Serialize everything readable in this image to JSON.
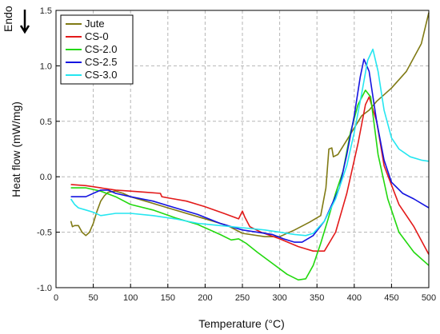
{
  "chart_data": {
    "type": "line",
    "title": "",
    "xlabel": "Temperature (°C)",
    "ylabel": "Heat flow (mW/mg)",
    "annotation": "Endo",
    "xlim": [
      0,
      500
    ],
    "ylim": [
      -1.0,
      1.5
    ],
    "xticks": [
      0,
      50,
      100,
      150,
      200,
      250,
      300,
      350,
      400,
      450,
      500
    ],
    "yticks": [
      -1.0,
      -0.5,
      0.0,
      0.5,
      1.0,
      1.5
    ],
    "grid": true,
    "legend_position": "top-left",
    "series": [
      {
        "name": "Jute",
        "color": "#807a14",
        "points": [
          [
            20,
            -0.4
          ],
          [
            22,
            -0.45
          ],
          [
            25,
            -0.44
          ],
          [
            30,
            -0.44
          ],
          [
            35,
            -0.5
          ],
          [
            40,
            -0.53
          ],
          [
            45,
            -0.5
          ],
          [
            50,
            -0.42
          ],
          [
            55,
            -0.31
          ],
          [
            60,
            -0.22
          ],
          [
            65,
            -0.17
          ],
          [
            70,
            -0.14
          ],
          [
            80,
            -0.13
          ],
          [
            90,
            -0.15
          ],
          [
            100,
            -0.18
          ],
          [
            120,
            -0.22
          ],
          [
            150,
            -0.28
          ],
          [
            200,
            -0.38
          ],
          [
            230,
            -0.44
          ],
          [
            250,
            -0.51
          ],
          [
            280,
            -0.54
          ],
          [
            300,
            -0.54
          ],
          [
            320,
            -0.48
          ],
          [
            340,
            -0.41
          ],
          [
            355,
            -0.35
          ],
          [
            362,
            -0.1
          ],
          [
            366,
            0.25
          ],
          [
            370,
            0.26
          ],
          [
            372,
            0.18
          ],
          [
            378,
            0.2
          ],
          [
            390,
            0.33
          ],
          [
            400,
            0.44
          ],
          [
            410,
            0.55
          ],
          [
            420,
            0.6
          ],
          [
            430,
            0.68
          ],
          [
            450,
            0.8
          ],
          [
            470,
            0.95
          ],
          [
            490,
            1.2
          ],
          [
            500,
            1.48
          ]
        ]
      },
      {
        "name": "CS-0",
        "color": "#e31a1a",
        "points": [
          [
            20,
            -0.07
          ],
          [
            40,
            -0.08
          ],
          [
            60,
            -0.1
          ],
          [
            80,
            -0.12
          ],
          [
            100,
            -0.13
          ],
          [
            120,
            -0.14
          ],
          [
            140,
            -0.15
          ],
          [
            142,
            -0.18
          ],
          [
            150,
            -0.19
          ],
          [
            175,
            -0.22
          ],
          [
            200,
            -0.27
          ],
          [
            225,
            -0.33
          ],
          [
            245,
            -0.38
          ],
          [
            250,
            -0.31
          ],
          [
            253,
            -0.36
          ],
          [
            260,
            -0.45
          ],
          [
            275,
            -0.5
          ],
          [
            300,
            -0.56
          ],
          [
            325,
            -0.63
          ],
          [
            345,
            -0.67
          ],
          [
            360,
            -0.67
          ],
          [
            375,
            -0.5
          ],
          [
            390,
            -0.15
          ],
          [
            405,
            0.3
          ],
          [
            415,
            0.65
          ],
          [
            420,
            0.72
          ],
          [
            430,
            0.5
          ],
          [
            440,
            0.1
          ],
          [
            460,
            -0.25
          ],
          [
            480,
            -0.45
          ],
          [
            500,
            -0.7
          ]
        ]
      },
      {
        "name": "CS-2.0",
        "color": "#22d80e",
        "points": [
          [
            20,
            -0.1
          ],
          [
            40,
            -0.1
          ],
          [
            60,
            -0.13
          ],
          [
            80,
            -0.18
          ],
          [
            100,
            -0.25
          ],
          [
            130,
            -0.3
          ],
          [
            160,
            -0.37
          ],
          [
            190,
            -0.43
          ],
          [
            220,
            -0.52
          ],
          [
            235,
            -0.57
          ],
          [
            245,
            -0.56
          ],
          [
            255,
            -0.6
          ],
          [
            270,
            -0.68
          ],
          [
            290,
            -0.78
          ],
          [
            310,
            -0.88
          ],
          [
            325,
            -0.93
          ],
          [
            335,
            -0.92
          ],
          [
            345,
            -0.8
          ],
          [
            355,
            -0.6
          ],
          [
            365,
            -0.38
          ],
          [
            375,
            -0.15
          ],
          [
            385,
            0.05
          ],
          [
            395,
            0.4
          ],
          [
            405,
            0.65
          ],
          [
            415,
            0.78
          ],
          [
            422,
            0.72
          ],
          [
            432,
            0.2
          ],
          [
            445,
            -0.2
          ],
          [
            460,
            -0.5
          ],
          [
            480,
            -0.68
          ],
          [
            500,
            -0.8
          ]
        ]
      },
      {
        "name": "CS-2.5",
        "color": "#1414e0",
        "points": [
          [
            20,
            -0.18
          ],
          [
            30,
            -0.18
          ],
          [
            40,
            -0.18
          ],
          [
            50,
            -0.15
          ],
          [
            60,
            -0.12
          ],
          [
            70,
            -0.12
          ],
          [
            80,
            -0.15
          ],
          [
            100,
            -0.18
          ],
          [
            130,
            -0.22
          ],
          [
            160,
            -0.28
          ],
          [
            190,
            -0.34
          ],
          [
            220,
            -0.42
          ],
          [
            250,
            -0.48
          ],
          [
            270,
            -0.5
          ],
          [
            290,
            -0.52
          ],
          [
            305,
            -0.56
          ],
          [
            320,
            -0.59
          ],
          [
            330,
            -0.59
          ],
          [
            345,
            -0.53
          ],
          [
            360,
            -0.4
          ],
          [
            380,
            -0.1
          ],
          [
            390,
            0.2
          ],
          [
            400,
            0.55
          ],
          [
            408,
            0.9
          ],
          [
            413,
            1.06
          ],
          [
            420,
            0.95
          ],
          [
            430,
            0.5
          ],
          [
            440,
            0.15
          ],
          [
            450,
            -0.05
          ],
          [
            465,
            -0.15
          ],
          [
            480,
            -0.2
          ],
          [
            495,
            -0.26
          ],
          [
            500,
            -0.28
          ]
        ]
      },
      {
        "name": "CS-3.0",
        "color": "#25e6f0",
        "points": [
          [
            20,
            -0.2
          ],
          [
            25,
            -0.25
          ],
          [
            30,
            -0.28
          ],
          [
            40,
            -0.3
          ],
          [
            50,
            -0.32
          ],
          [
            60,
            -0.35
          ],
          [
            80,
            -0.33
          ],
          [
            100,
            -0.33
          ],
          [
            130,
            -0.35
          ],
          [
            160,
            -0.38
          ],
          [
            190,
            -0.42
          ],
          [
            220,
            -0.44
          ],
          [
            250,
            -0.46
          ],
          [
            280,
            -0.48
          ],
          [
            300,
            -0.5
          ],
          [
            320,
            -0.52
          ],
          [
            335,
            -0.53
          ],
          [
            345,
            -0.51
          ],
          [
            360,
            -0.4
          ],
          [
            375,
            -0.2
          ],
          [
            390,
            0.1
          ],
          [
            400,
            0.4
          ],
          [
            410,
            0.75
          ],
          [
            418,
            1.05
          ],
          [
            425,
            1.15
          ],
          [
            432,
            0.95
          ],
          [
            440,
            0.6
          ],
          [
            450,
            0.35
          ],
          [
            460,
            0.25
          ],
          [
            475,
            0.18
          ],
          [
            490,
            0.15
          ],
          [
            500,
            0.14
          ]
        ]
      }
    ]
  }
}
